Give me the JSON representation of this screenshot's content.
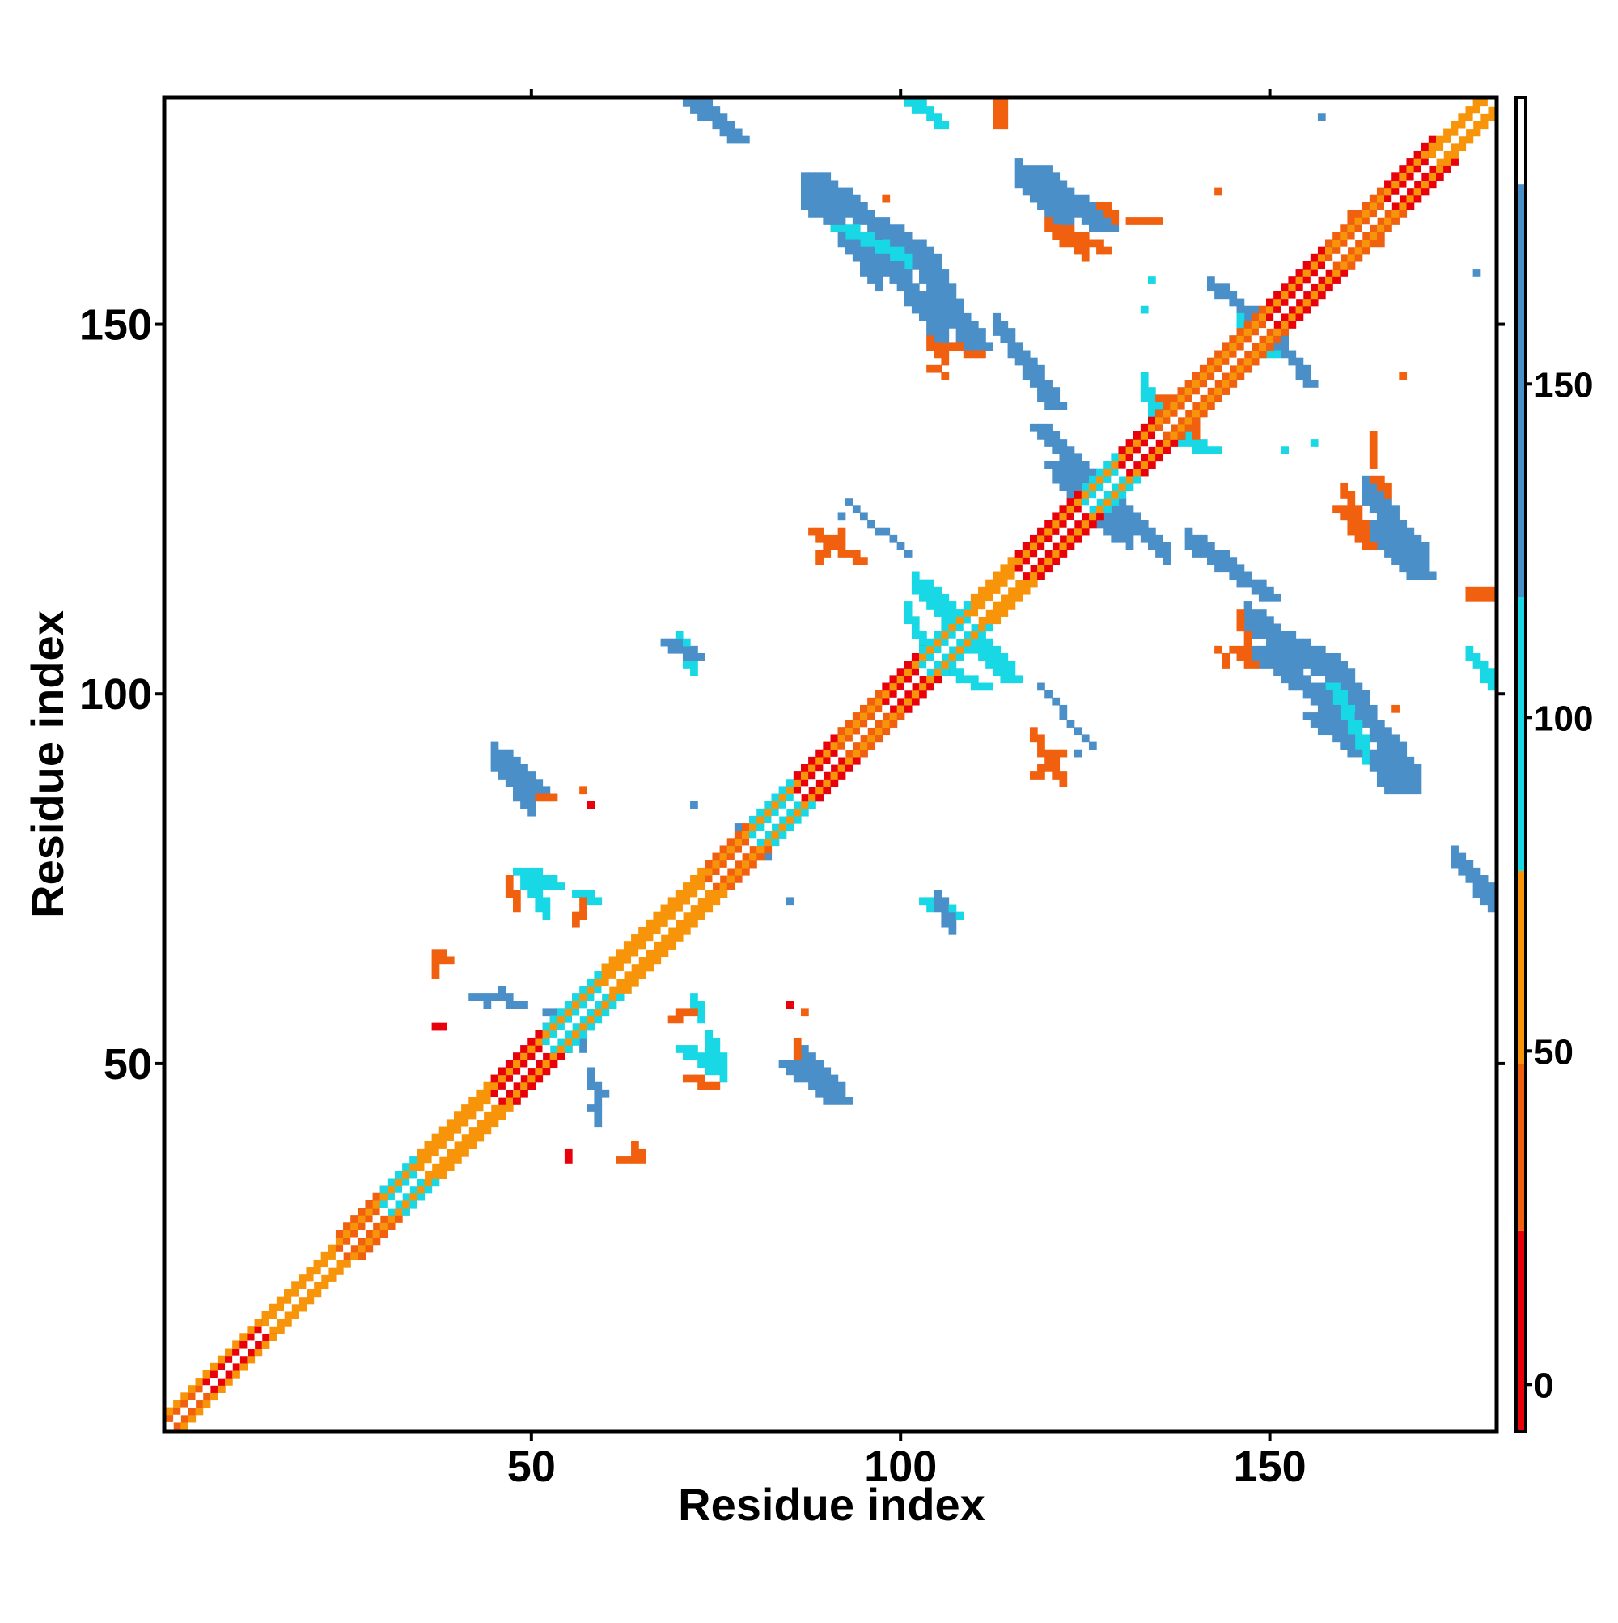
{
  "chart_data": {
    "type": "heatmap",
    "title": "",
    "xlabel": "Residue index",
    "ylabel": "Residue index",
    "xlim": [
      1,
      180
    ],
    "ylim": [
      1,
      180
    ],
    "x_ticks": [
      50,
      100,
      150
    ],
    "y_ticks": [
      50,
      100,
      150
    ],
    "x_tick_labels": [
      "50",
      "100",
      "150"
    ],
    "y_tick_labels": [
      "50",
      "100",
      "150"
    ],
    "colorbar": {
      "ticks": [
        0,
        50,
        100,
        150
      ],
      "tick_labels": [
        "0",
        "50",
        "100",
        "150"
      ],
      "range": [
        -7,
        193
      ],
      "bands": [
        {
          "from": -7,
          "to": 23,
          "color": "#e8000b"
        },
        {
          "from": 23,
          "to": 48,
          "color": "#f0600f"
        },
        {
          "from": 48,
          "to": 77,
          "color": "#f89409"
        },
        {
          "from": 77,
          "to": 118,
          "color": "#19d8e6"
        },
        {
          "from": 118,
          "to": 180,
          "color": "#4a8fc8"
        },
        {
          "from": 180,
          "to": 193,
          "color": "#ffffff"
        }
      ]
    },
    "grid": false,
    "legend": "colorbar-right",
    "diagonal": {
      "from": 1,
      "to": 180,
      "pattern": "alternating red/orange/yellow helix bands with cyan crossings",
      "segments": [
        {
          "from": 1,
          "to": 6,
          "color": "#f0600f",
          "width": 2
        },
        {
          "from": 6,
          "to": 14,
          "color": "#e8000b",
          "width": 2
        },
        {
          "from": 14,
          "to": 24,
          "color": "#f89409",
          "width": 2
        },
        {
          "from": 24,
          "to": 30,
          "color": "#f0600f",
          "width": 3
        },
        {
          "from": 30,
          "to": 35,
          "color": "#19d8e6",
          "width": 3
        },
        {
          "from": 35,
          "to": 45,
          "color": "#f89409",
          "width": 3
        },
        {
          "from": 45,
          "to": 52,
          "color": "#e8000b",
          "width": 3
        },
        {
          "from": 52,
          "to": 60,
          "color": "#19d8e6",
          "width": 3
        },
        {
          "from": 60,
          "to": 74,
          "color": "#f89409",
          "width": 3
        },
        {
          "from": 74,
          "to": 80,
          "color": "#f0600f",
          "width": 3
        },
        {
          "from": 80,
          "to": 86,
          "color": "#19d8e6",
          "width": 3
        },
        {
          "from": 86,
          "to": 92,
          "color": "#e8000b",
          "width": 3
        },
        {
          "from": 92,
          "to": 98,
          "color": "#f0600f",
          "width": 3
        },
        {
          "from": 98,
          "to": 103,
          "color": "#e8000b",
          "width": 3
        },
        {
          "from": 103,
          "to": 110,
          "color": "#19d8e6",
          "width": 3
        },
        {
          "from": 110,
          "to": 116,
          "color": "#f89409",
          "width": 3
        },
        {
          "from": 116,
          "to": 125,
          "color": "#e8000b",
          "width": 3
        },
        {
          "from": 125,
          "to": 130,
          "color": "#19d8e6",
          "width": 3
        },
        {
          "from": 130,
          "to": 135,
          "color": "#e8000b",
          "width": 3
        },
        {
          "from": 135,
          "to": 150,
          "color": "#f0600f",
          "width": 3
        },
        {
          "from": 150,
          "to": 158,
          "color": "#e8000b",
          "width": 3
        },
        {
          "from": 158,
          "to": 166,
          "color": "#f0600f",
          "width": 3
        },
        {
          "from": 166,
          "to": 172,
          "color": "#e8000b",
          "width": 3
        },
        {
          "from": 172,
          "to": 180,
          "color": "#f89409",
          "width": 2
        }
      ]
    },
    "regions": [
      {
        "x": [
          5,
          26
        ],
        "y": [
          5,
          26
        ],
        "value": 60,
        "note": "near-diagonal"
      },
      {
        "path": [
          [
            72,
            180
          ],
          [
            78,
            175
          ]
        ],
        "value": 140,
        "width": 2
      },
      {
        "path": [
          [
            101,
            180
          ],
          [
            105,
            177
          ]
        ],
        "value": 100,
        "width": 2
      },
      {
        "path": [
          [
            113,
            180
          ],
          [
            113,
            177
          ]
        ],
        "value": 40,
        "width": 2
      },
      {
        "path": [
          [
            87,
            170
          ],
          [
            93,
            165
          ],
          [
            101,
            160
          ],
          [
            104,
            154
          ],
          [
            109,
            147
          ]
        ],
        "value": 140,
        "width": 4
      },
      {
        "path": [
          [
            91,
            163
          ],
          [
            101,
            158
          ]
        ],
        "value": 100,
        "width": 3
      },
      {
        "path": [
          [
            106,
            147
          ],
          [
            110,
            146
          ]
        ],
        "value": 45,
        "width": 2
      },
      {
        "path": [
          [
            104,
            144
          ],
          [
            106,
            143
          ]
        ],
        "value": 45,
        "width": 1
      },
      {
        "path": [
          [
            117,
            171
          ],
          [
            126,
            163
          ]
        ],
        "value": 140,
        "width": 4
      },
      {
        "path": [
          [
            122,
            163
          ],
          [
            127,
            160
          ]
        ],
        "value": 40,
        "width": 2
      },
      {
        "path": [
          [
            131,
            164
          ],
          [
            134,
            164
          ]
        ],
        "value": 40,
        "width": 2
      },
      {
        "path": [
          [
            116,
            145
          ],
          [
            120,
            139
          ]
        ],
        "value": 140,
        "width": 3
      },
      {
        "path": [
          [
            120,
            131
          ],
          [
            129,
            121
          ]
        ],
        "value": 120,
        "width": 3
      },
      {
        "path": [
          [
            118,
            136
          ],
          [
            126,
            128
          ]
        ],
        "value": 140,
        "width": 3
      },
      {
        "path": [
          [
            129,
            124
          ],
          [
            134,
            121
          ]
        ],
        "value": 100,
        "width": 2
      },
      {
        "path": [
          [
            136,
            135
          ],
          [
            141,
            133
          ]
        ],
        "value": 100,
        "width": 3
      },
      {
        "path": [
          [
            133,
            141
          ],
          [
            136,
            139
          ]
        ],
        "value": 45,
        "width": 2
      },
      {
        "path": [
          [
            143,
            155
          ],
          [
            150,
            149
          ],
          [
            155,
            142
          ]
        ],
        "value": 140,
        "width": 2
      },
      {
        "path": [
          [
            145,
            148
          ],
          [
            150,
            146
          ]
        ],
        "value": 100,
        "width": 3
      },
      {
        "path": [
          [
            162,
            123
          ],
          [
            169,
            116
          ]
        ],
        "value": 140,
        "width": 4
      },
      {
        "path": [
          [
            159,
            125
          ],
          [
            163,
            120
          ]
        ],
        "value": 40,
        "width": 3
      },
      {
        "path": [
          [
            164,
            129
          ],
          [
            165,
            127
          ]
        ],
        "value": 40,
        "width": 2
      },
      {
        "path": [
          [
            141,
            119
          ],
          [
            149,
            113
          ]
        ],
        "value": 140,
        "width": 3
      },
      {
        "path": [
          [
            147,
            106
          ],
          [
            160,
            96
          ]
        ],
        "value": 140,
        "width": 4
      },
      {
        "path": [
          [
            155,
            97
          ],
          [
            164,
            90
          ],
          [
            166,
            87
          ]
        ],
        "value": 120,
        "width": 4
      },
      {
        "path": [
          [
            145,
            106
          ],
          [
            147,
            104
          ]
        ],
        "value": 40,
        "width": 2
      },
      {
        "path": [
          [
            177,
            113
          ],
          [
            180,
            113
          ]
        ],
        "value": 40,
        "width": 2
      },
      {
        "path": [
          [
            177,
            105
          ],
          [
            180,
            102
          ]
        ],
        "value": 110,
        "width": 2
      },
      {
        "path": [
          [
            175,
            77
          ],
          [
            180,
            71
          ]
        ],
        "value": 140,
        "width": 3
      },
      {
        "path": [
          [
            102,
            115
          ],
          [
            110,
            106
          ],
          [
            114,
            102
          ]
        ],
        "value": 100,
        "width": 3
      },
      {
        "path": [
          [
            106,
            103
          ],
          [
            111,
            101
          ]
        ],
        "value": 110,
        "width": 2
      },
      {
        "path": [
          [
            88,
            122
          ],
          [
            94,
            118
          ]
        ],
        "value": 40,
        "width": 2
      },
      {
        "path": [
          [
            93,
            126
          ],
          [
            97,
            122
          ]
        ],
        "value": 140,
        "width": 1
      },
      {
        "path": [
          [
            121,
            92
          ],
          [
            118,
            89
          ]
        ],
        "value": 40,
        "width": 2
      },
      {
        "path": [
          [
            119,
            101
          ],
          [
            124,
            95
          ]
        ],
        "value": 140,
        "width": 1
      },
      {
        "path": [
          [
            68,
            107
          ],
          [
            71,
            105
          ]
        ],
        "value": 140,
        "width": 3
      },
      {
        "path": [
          [
            45,
            92
          ],
          [
            50,
            87
          ]
        ],
        "value": 140,
        "width": 3
      },
      {
        "path": [
          [
            49,
            88
          ],
          [
            52,
            86
          ]
        ],
        "value": 45,
        "width": 2
      },
      {
        "path": [
          [
            48,
            76
          ],
          [
            52,
            74
          ]
        ],
        "value": 100,
        "width": 3
      },
      {
        "path": [
          [
            56,
            73
          ],
          [
            58,
            72
          ]
        ],
        "value": 100,
        "width": 2
      },
      {
        "path": [
          [
            103,
            72
          ],
          [
            106,
            70
          ]
        ],
        "value": 100,
        "width": 3
      },
      {
        "path": [
          [
            37,
            65
          ],
          [
            38,
            64
          ]
        ],
        "value": 40,
        "width": 2
      },
      {
        "path": [
          [
            44,
            59
          ],
          [
            48,
            58
          ]
        ],
        "value": 120,
        "width": 2
      },
      {
        "path": [
          [
            52,
            57
          ],
          [
            56,
            54
          ]
        ],
        "value": 140,
        "width": 2
      },
      {
        "path": [
          [
            70,
            52
          ],
          [
            74,
            49
          ]
        ],
        "value": 100,
        "width": 3
      },
      {
        "path": [
          [
            71,
            48
          ],
          [
            74,
            47
          ]
        ],
        "value": 45,
        "width": 2
      },
      {
        "path": [
          [
            84,
            50
          ],
          [
            90,
            45
          ]
        ],
        "value": 140,
        "width": 4
      },
      {
        "path": [
          [
            86,
            51
          ],
          [
            87,
            50
          ]
        ],
        "value": 45,
        "width": 1
      },
      {
        "path": [
          [
            58,
            44
          ],
          [
            59,
            42
          ]
        ],
        "value": 140,
        "width": 1
      },
      {
        "path": [
          [
            62,
            37
          ],
          [
            64,
            37
          ]
        ],
        "value": 40,
        "width": 2
      },
      {
        "path": [
          [
            69,
            56
          ],
          [
            71,
            57
          ]
        ],
        "value": 40,
        "width": 2
      },
      {
        "path": [
          [
            37,
            55
          ],
          [
            38,
            55
          ]
        ],
        "value": 0,
        "width": 1
      },
      {
        "x": [
          57,
          57
        ],
        "y": [
          87,
          87
        ],
        "value": 30
      },
      {
        "x": [
          72,
          72
        ],
        "y": [
          85,
          85
        ],
        "value": 140
      },
      {
        "x": [
          82,
          82
        ],
        "y": [
          78,
          78
        ],
        "value": 140
      },
      {
        "x": [
          85,
          85
        ],
        "y": [
          58,
          58
        ],
        "value": 20
      },
      {
        "x": [
          92,
          92
        ],
        "y": [
          124,
          124
        ],
        "value": 140
      },
      {
        "x": [
          101,
          101
        ],
        "y": [
          99,
          99
        ],
        "value": 140
      },
      {
        "x": [
          108,
          108
        ],
        "y": [
          149,
          149
        ],
        "value": 140
      },
      {
        "x": [
          109,
          109
        ],
        "y": [
          149,
          149
        ],
        "value": 100
      },
      {
        "x": [
          134,
          134
        ],
        "y": [
          156,
          156
        ],
        "value": 100
      },
      {
        "x": [
          152,
          152
        ],
        "y": [
          133,
          133
        ],
        "value": 100
      },
      {
        "x": [
          157,
          157
        ],
        "y": [
          178,
          178
        ],
        "value": 140
      },
      {
        "x": [
          161,
          161
        ],
        "y": [
          165,
          165
        ],
        "value": 40
      },
      {
        "x": [
          168,
          168
        ],
        "y": [
          143,
          143
        ],
        "value": 40
      },
      {
        "x": [
          167,
          167
        ],
        "y": [
          98,
          98
        ],
        "value": 40
      },
      {
        "x": [
          172,
          172
        ],
        "y": [
          170,
          170
        ],
        "value": 140
      },
      {
        "x": [
          150,
          150
        ],
        "y": [
          110,
          110
        ],
        "value": 140
      },
      {
        "x": [
          60,
          60
        ],
        "y": [
          46,
          46
        ],
        "value": 140
      }
    ]
  }
}
